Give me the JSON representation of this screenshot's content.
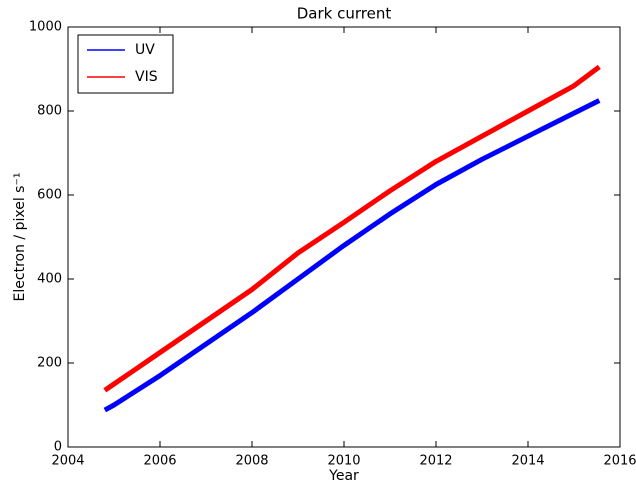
{
  "chart_data": {
    "type": "line",
    "title": "Dark current",
    "xlabel": "Year",
    "ylabel": "Electron / pixel s⁻¹",
    "x": [
      2004.8,
      2005,
      2006,
      2007,
      2008,
      2009,
      2010,
      2011,
      2012,
      2013,
      2014,
      2015,
      2015.55
    ],
    "series": [
      {
        "name": "UV",
        "color": "#0000ff",
        "values": [
          88,
          100,
          170,
          245,
          320,
          400,
          480,
          555,
          625,
          685,
          740,
          795,
          825
        ]
      },
      {
        "name": "VIS",
        "color": "#ff0000",
        "values": [
          135,
          150,
          225,
          300,
          375,
          462,
          535,
          610,
          680,
          740,
          800,
          860,
          905
        ]
      }
    ],
    "xlim": [
      2004,
      2016
    ],
    "xticks": [
      2004,
      2006,
      2008,
      2010,
      2012,
      2014,
      2016
    ],
    "ylim": [
      0,
      1000
    ],
    "yticks": [
      0,
      200,
      400,
      600,
      800,
      1000
    ],
    "grid": false,
    "legend": "upper left"
  }
}
